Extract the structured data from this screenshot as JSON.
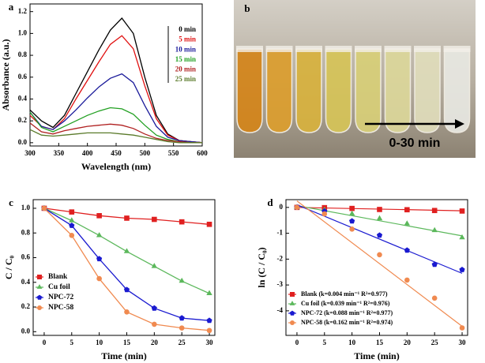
{
  "chart_data": [
    {
      "type": "line",
      "panel": "a",
      "xlabel": "Wavelength (nm)",
      "ylabel": "Absorbance (a.u.)",
      "x": [
        300,
        320,
        340,
        360,
        380,
        400,
        420,
        440,
        460,
        480,
        500,
        520,
        540,
        560,
        580,
        600
      ],
      "series": [
        {
          "name": "0 min",
          "color": "#000000",
          "values": [
            0.3,
            0.2,
            0.14,
            0.25,
            0.45,
            0.65,
            0.85,
            1.03,
            1.14,
            1.0,
            0.6,
            0.25,
            0.08,
            0.02,
            0.01,
            0.0
          ]
        },
        {
          "name": "5 min",
          "color": "#e01010",
          "values": [
            0.25,
            0.15,
            0.12,
            0.22,
            0.4,
            0.57,
            0.74,
            0.9,
            0.98,
            0.86,
            0.52,
            0.22,
            0.07,
            0.02,
            0.01,
            0.0
          ]
        },
        {
          "name": "10 min",
          "color": "#1a1a9a",
          "values": [
            0.28,
            0.15,
            0.12,
            0.2,
            0.3,
            0.41,
            0.51,
            0.59,
            0.63,
            0.55,
            0.34,
            0.15,
            0.05,
            0.02,
            0.01,
            0.0
          ]
        },
        {
          "name": "15 min",
          "color": "#22a022",
          "values": [
            0.28,
            0.14,
            0.1,
            0.15,
            0.2,
            0.25,
            0.29,
            0.32,
            0.31,
            0.26,
            0.16,
            0.07,
            0.03,
            0.01,
            0.0,
            0.0
          ]
        },
        {
          "name": "20 min",
          "color": "#b02020",
          "values": [
            0.18,
            0.1,
            0.08,
            0.11,
            0.13,
            0.15,
            0.16,
            0.17,
            0.16,
            0.13,
            0.08,
            0.04,
            0.02,
            0.01,
            0.0,
            0.0
          ]
        },
        {
          "name": "25 min",
          "color": "#5a7a2a",
          "values": [
            0.12,
            0.07,
            0.06,
            0.07,
            0.08,
            0.09,
            0.09,
            0.09,
            0.08,
            0.07,
            0.05,
            0.03,
            0.01,
            0.0,
            0.0,
            0.0
          ]
        }
      ],
      "xlim": [
        300,
        600
      ],
      "xticks": [
        300,
        350,
        400,
        450,
        500,
        550,
        600
      ],
      "ylim": [
        -0.03,
        1.27
      ],
      "yticks": [
        {
          "value": 0,
          "label": "0.0"
        },
        0.2,
        0.4,
        0.6,
        0.8,
        {
          "value": 1,
          "label": "1.0"
        },
        1.2
      ],
      "legend": "upper right"
    },
    {
      "type": "line",
      "panel": "c",
      "xlabel": "Time (min)",
      "ylabel": "C / C₀",
      "x": [
        0,
        5,
        10,
        15,
        20,
        25,
        30
      ],
      "series": [
        {
          "name": "Blank",
          "color": "#e02020",
          "marker": "square",
          "values": [
            1.0,
            0.97,
            0.94,
            0.92,
            0.91,
            0.89,
            0.87
          ]
        },
        {
          "name": "Cu foil",
          "color": "#5cb85c",
          "marker": "triangle",
          "values": [
            1.0,
            0.9,
            0.78,
            0.65,
            0.53,
            0.41,
            0.31
          ]
        },
        {
          "name": "NPC-72",
          "color": "#1a1ad0",
          "marker": "pentagon",
          "values": [
            1.0,
            0.86,
            0.59,
            0.34,
            0.19,
            0.11,
            0.09
          ]
        },
        {
          "name": "NPC-58",
          "color": "#f08a50",
          "marker": "circle",
          "values": [
            1.0,
            0.78,
            0.43,
            0.16,
            0.06,
            0.03,
            0.01
          ]
        }
      ],
      "xlim": [
        -2,
        31
      ],
      "xticks": [
        0,
        5,
        10,
        15,
        20,
        25,
        30
      ],
      "ylim": [
        -0.03,
        1.07
      ],
      "yticks": [
        {
          "value": 0,
          "label": "0.0"
        },
        0.2,
        0.4,
        0.6,
        0.8,
        {
          "value": 1,
          "label": "1.0"
        }
      ],
      "legend": "lower left"
    },
    {
      "type": "scatter",
      "panel": "d",
      "xlabel": "Time (min)",
      "ylabel": "ln (C / C₀)",
      "x": [
        0,
        5,
        10,
        15,
        20,
        25,
        30
      ],
      "fit_x": [
        0,
        30
      ],
      "series": [
        {
          "name": "Blank (k=0.004 min⁻¹ R²=0.977)",
          "color": "#e02020",
          "marker": "square",
          "values": [
            0,
            -0.01,
            -0.04,
            -0.08,
            -0.09,
            -0.12,
            -0.14
          ],
          "fit_values": [
            0.0,
            -0.13
          ]
        },
        {
          "name": "Cu foil (k=0.039 min⁻¹ R²=0.976)",
          "color": "#5cb85c",
          "marker": "triangle",
          "values": [
            0,
            -0.1,
            -0.25,
            -0.43,
            -0.63,
            -0.89,
            -1.17
          ],
          "fit_values": [
            0.07,
            -1.1
          ]
        },
        {
          "name": "NPC-72 (k=0.088 min⁻¹ R²=0.977)",
          "color": "#1a1ad0",
          "marker": "pentagon",
          "values": [
            0,
            -0.15,
            -0.53,
            -1.08,
            -1.66,
            -2.21,
            -2.41
          ],
          "fit_values": [
            0.1,
            -2.55
          ]
        },
        {
          "name": "NPC-58 (k=0.162 min⁻¹ R²=0.974)",
          "color": "#f08a50",
          "marker": "circle",
          "values": [
            0,
            -0.25,
            -0.84,
            -1.83,
            -2.81,
            -3.51,
            -4.66
          ],
          "fit_values": [
            0.25,
            -4.6
          ]
        }
      ],
      "xlim": [
        -2,
        31
      ],
      "xticks": [
        0,
        5,
        10,
        15,
        20,
        25,
        30
      ],
      "ylim": [
        -4.95,
        0.3
      ],
      "yticks": [
        0,
        -1,
        -2,
        -3,
        -4
      ],
      "legend": "lower left"
    }
  ],
  "image_panel": {
    "panel": "b",
    "annotation": "0-30 min"
  }
}
